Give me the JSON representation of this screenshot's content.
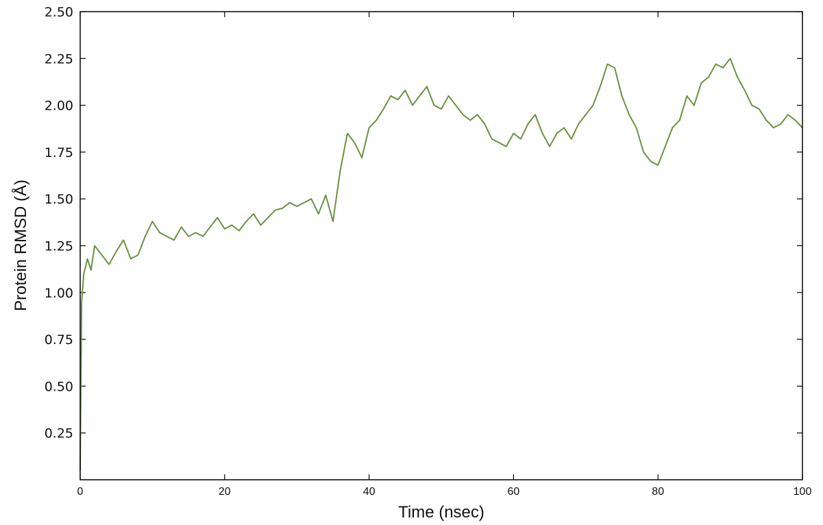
{
  "chart_data": {
    "type": "line",
    "xlabel": "Time (nsec)",
    "ylabel": "Protein RMSD (Å)",
    "xlim": [
      0,
      100
    ],
    "ylim": [
      0,
      2.5
    ],
    "x_ticks": [
      0,
      20,
      40,
      60,
      80,
      100
    ],
    "x_tick_labels": [
      "0",
      "20",
      "40",
      "60",
      "80",
      "100"
    ],
    "y_ticks": [
      0.25,
      0.5,
      0.75,
      1.0,
      1.25,
      1.5,
      1.75,
      2.0,
      2.25,
      2.5
    ],
    "y_tick_labels": [
      "0.25",
      "0.50",
      "0.75",
      "1.00",
      "1.25",
      "1.50",
      "1.75",
      "2.00",
      "2.25",
      "2.50"
    ],
    "grid": false,
    "colors": {
      "series": "#6a9140",
      "axis": "#000000"
    },
    "series": [
      {
        "x": [
          0,
          0.2,
          0.5,
          1,
          1.5,
          2,
          3,
          4,
          5,
          6,
          7,
          8,
          9,
          10,
          11,
          12,
          13,
          14,
          15,
          16,
          17,
          18,
          19,
          20,
          21,
          22,
          23,
          24,
          25,
          26,
          27,
          28,
          29,
          30,
          31,
          32,
          33,
          34,
          35,
          36,
          37,
          38,
          39,
          40,
          41,
          42,
          43,
          44,
          45,
          46,
          47,
          48,
          49,
          50,
          51,
          52,
          53,
          54,
          55,
          56,
          57,
          58,
          59,
          60,
          61,
          62,
          63,
          64,
          65,
          66,
          67,
          68,
          69,
          70,
          71,
          72,
          73,
          74,
          75,
          76,
          77,
          78,
          79,
          80,
          81,
          82,
          83,
          84,
          85,
          86,
          87,
          88,
          89,
          90,
          91,
          92,
          93,
          94,
          95,
          96,
          97,
          98,
          99,
          100
        ],
        "values": [
          0.05,
          0.95,
          1.1,
          1.18,
          1.12,
          1.25,
          1.2,
          1.15,
          1.22,
          1.28,
          1.18,
          1.2,
          1.3,
          1.38,
          1.32,
          1.3,
          1.28,
          1.35,
          1.3,
          1.32,
          1.3,
          1.35,
          1.4,
          1.34,
          1.36,
          1.33,
          1.38,
          1.42,
          1.36,
          1.4,
          1.44,
          1.45,
          1.48,
          1.46,
          1.48,
          1.5,
          1.42,
          1.52,
          1.38,
          1.65,
          1.85,
          1.8,
          1.72,
          1.88,
          1.92,
          1.98,
          2.05,
          2.03,
          2.08,
          2.0,
          2.05,
          2.1,
          2.0,
          1.98,
          2.05,
          2.0,
          1.95,
          1.92,
          1.95,
          1.9,
          1.82,
          1.8,
          1.78,
          1.85,
          1.82,
          1.9,
          1.95,
          1.85,
          1.78,
          1.85,
          1.88,
          1.82,
          1.9,
          1.95,
          2.0,
          2.1,
          2.22,
          2.2,
          2.05,
          1.95,
          1.88,
          1.75,
          1.7,
          1.68,
          1.78,
          1.88,
          1.92,
          2.05,
          2.0,
          2.12,
          2.15,
          2.22,
          2.2,
          2.25,
          2.15,
          2.08,
          2.0,
          1.98,
          1.92,
          1.88,
          1.9,
          1.95,
          1.92,
          1.88
        ]
      }
    ]
  }
}
